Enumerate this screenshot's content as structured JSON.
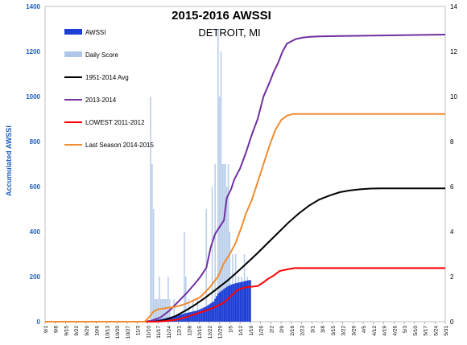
{
  "chart_data": {
    "type": "line",
    "title": "2015-2016  AWSSI",
    "subtitle": "DETROIT, MI",
    "ylabel": "Accumulated AWSSI",
    "ylim": [
      0,
      1400
    ],
    "y2lim": [
      0,
      14
    ],
    "yticks": [
      0,
      200,
      400,
      600,
      800,
      1000,
      1200,
      1400
    ],
    "y2ticks": [
      0,
      2,
      4,
      6,
      8,
      10,
      12,
      14
    ],
    "grid": false,
    "legend_position": "top-left",
    "colors": {
      "awssi": "#1e3fd6",
      "daily": "#aec7e8",
      "avg": "#000000",
      "season1314": "#7030a0",
      "lowest": "#ff0000",
      "last": "#f08c30",
      "left_axis": "#1f5fbf"
    },
    "x_ticks": [
      "9/1",
      "9/8",
      "9/15",
      "9/22",
      "9/29",
      "10/6",
      "10/13",
      "10/20",
      "10/27",
      "11/3",
      "11/10",
      "11/17",
      "11/24",
      "12/1",
      "12/8",
      "12/15",
      "12/22",
      "12/29",
      "1/5",
      "1/12",
      "1/19",
      "1/26",
      "2/2",
      "2/9",
      "2/16",
      "2/23",
      "3/1",
      "3/8",
      "3/15",
      "3/22",
      "3/29",
      "4/5",
      "4/12",
      "4/19",
      "4/26",
      "5/3",
      "5/10",
      "5/17",
      "5/24",
      "5/31"
    ],
    "legend": [
      {
        "label": "AWSSI",
        "kind": "bar-dark"
      },
      {
        "label": "Daily Score",
        "kind": "bar-light"
      },
      {
        "label": "1951-2014 Avg",
        "kind": "line",
        "color": "#000000"
      },
      {
        "label": "2013-2014",
        "kind": "line",
        "color": "#7030a0"
      },
      {
        "label": "LOWEST 2011-2012",
        "kind": "line",
        "color": "#ff0000"
      },
      {
        "label": "Last Season 2014-2015",
        "kind": "line",
        "color": "#f08c30"
      }
    ],
    "series": [
      {
        "name": "1951-2014 Avg",
        "color": "#000000",
        "points": [
          [
            0,
            0
          ],
          [
            75,
            0
          ],
          [
            82,
            8
          ],
          [
            89,
            25
          ],
          [
            96,
            50
          ],
          [
            103,
            78
          ],
          [
            110,
            110
          ],
          [
            117,
            145
          ],
          [
            124,
            180
          ],
          [
            131,
            220
          ],
          [
            138,
            262
          ],
          [
            145,
            305
          ],
          [
            152,
            350
          ],
          [
            159,
            395
          ],
          [
            166,
            440
          ],
          [
            173,
            480
          ],
          [
            180,
            515
          ],
          [
            187,
            542
          ],
          [
            194,
            560
          ],
          [
            201,
            575
          ],
          [
            208,
            583
          ],
          [
            215,
            588
          ],
          [
            222,
            591
          ],
          [
            229,
            592
          ],
          [
            273,
            592
          ]
        ]
      },
      {
        "name": "2013-2014",
        "color": "#7030a0",
        "points": [
          [
            0,
            0
          ],
          [
            68,
            0
          ],
          [
            73,
            5
          ],
          [
            79,
            20
          ],
          [
            85,
            50
          ],
          [
            91,
            90
          ],
          [
            97,
            130
          ],
          [
            103,
            175
          ],
          [
            106,
            200
          ],
          [
            110,
            240
          ],
          [
            113,
            330
          ],
          [
            116,
            390
          ],
          [
            119,
            420
          ],
          [
            122,
            450
          ],
          [
            124,
            550
          ],
          [
            127,
            590
          ],
          [
            129,
            630
          ],
          [
            133,
            680
          ],
          [
            137,
            750
          ],
          [
            141,
            830
          ],
          [
            145,
            900
          ],
          [
            149,
            1000
          ],
          [
            153,
            1060
          ],
          [
            156,
            1110
          ],
          [
            159,
            1150
          ],
          [
            162,
            1200
          ],
          [
            165,
            1235
          ],
          [
            168,
            1245
          ],
          [
            171,
            1255
          ],
          [
            176,
            1262
          ],
          [
            181,
            1265
          ],
          [
            187,
            1267
          ],
          [
            193,
            1268
          ],
          [
            273,
            1275
          ]
        ]
      },
      {
        "name": "LOWEST 2011-2012",
        "color": "#ff0000",
        "points": [
          [
            0,
            0
          ],
          [
            75,
            0
          ],
          [
            82,
            3
          ],
          [
            89,
            8
          ],
          [
            96,
            20
          ],
          [
            103,
            35
          ],
          [
            110,
            50
          ],
          [
            116,
            65
          ],
          [
            122,
            85
          ],
          [
            127,
            115
          ],
          [
            131,
            140
          ],
          [
            135,
            150
          ],
          [
            140,
            155
          ],
          [
            145,
            158
          ],
          [
            149,
            175
          ],
          [
            152,
            190
          ],
          [
            156,
            205
          ],
          [
            160,
            225
          ],
          [
            165,
            232
          ],
          [
            170,
            238
          ],
          [
            273,
            238
          ]
        ]
      },
      {
        "name": "Last Season 2014-2015",
        "color": "#f08c30",
        "points": [
          [
            0,
            0
          ],
          [
            68,
            0
          ],
          [
            71,
            20
          ],
          [
            74,
            45
          ],
          [
            77,
            55
          ],
          [
            82,
            60
          ],
          [
            88,
            65
          ],
          [
            94,
            75
          ],
          [
            100,
            90
          ],
          [
            106,
            110
          ],
          [
            112,
            150
          ],
          [
            118,
            200
          ],
          [
            122,
            260
          ],
          [
            126,
            300
          ],
          [
            130,
            350
          ],
          [
            134,
            420
          ],
          [
            137,
            480
          ],
          [
            141,
            540
          ],
          [
            145,
            620
          ],
          [
            149,
            700
          ],
          [
            153,
            780
          ],
          [
            157,
            850
          ],
          [
            161,
            895
          ],
          [
            165,
            915
          ],
          [
            169,
            922
          ],
          [
            273,
            922
          ]
        ]
      }
    ],
    "awssi_bars": {
      "name": "AWSSI",
      "day_range": [
        72,
        140
      ],
      "points": [
        [
          72,
          5
        ],
        [
          80,
          12
        ],
        [
          88,
          25
        ],
        [
          96,
          38
        ],
        [
          104,
          50
        ],
        [
          110,
          68
        ],
        [
          115,
          90
        ],
        [
          118,
          125
        ],
        [
          121,
          140
        ],
        [
          124,
          155
        ],
        [
          127,
          165
        ],
        [
          131,
          172
        ],
        [
          135,
          178
        ],
        [
          138,
          183
        ],
        [
          140,
          185
        ]
      ]
    },
    "daily_score": {
      "name": "Daily Score",
      "days": [
        72,
        73,
        74,
        75,
        76,
        77,
        78,
        79,
        80,
        81,
        82,
        83,
        84,
        85,
        88,
        95,
        96,
        98,
        101,
        104,
        110,
        114,
        116,
        118,
        119,
        120,
        121,
        122,
        123,
        124,
        125,
        126,
        128,
        130,
        132,
        134,
        136,
        138
      ],
      "values": [
        10,
        7,
        5,
        1,
        1,
        1,
        2,
        1,
        1,
        1,
        1,
        1,
        2,
        1,
        1,
        4,
        2,
        1,
        1,
        1,
        5,
        6,
        7,
        13,
        10,
        12,
        7,
        7,
        7,
        6,
        7,
        4,
        3,
        3,
        2,
        2,
        3,
        2
      ]
    }
  }
}
